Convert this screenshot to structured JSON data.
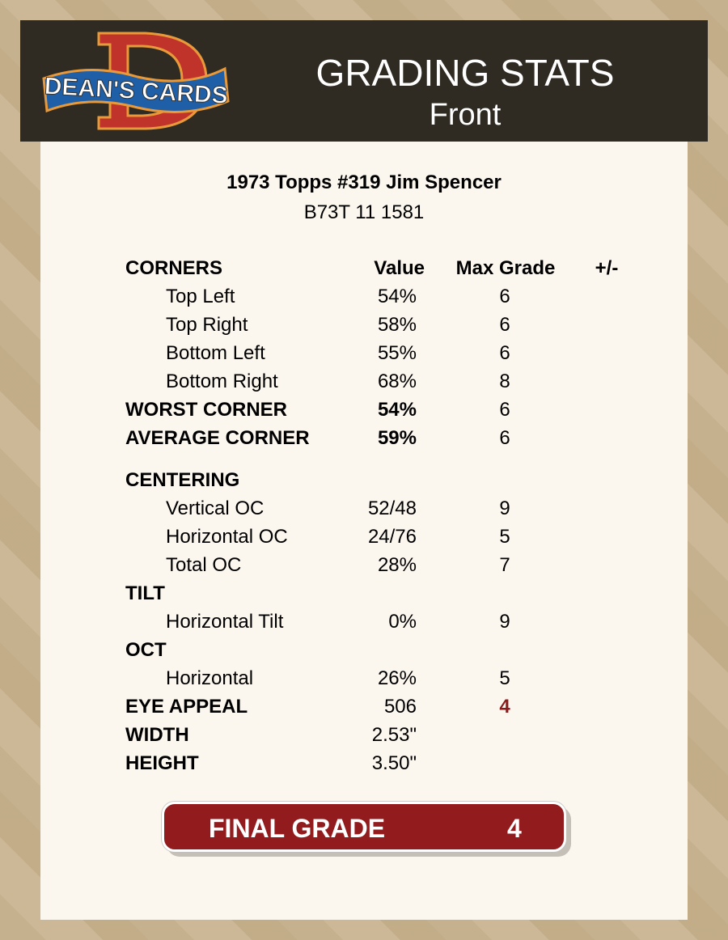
{
  "header": {
    "logo_text": "DEAN'S CARDS",
    "title": "GRADING STATS",
    "subtitle": "Front"
  },
  "card": {
    "name": "1973 Topps #319 Jim Spencer",
    "code": "B73T 11 1581"
  },
  "columns": {
    "value": "Value",
    "max_grade": "Max Grade",
    "plus_minus": "+/-"
  },
  "rows": [
    {
      "label": "CORNERS",
      "bold": true,
      "header": true
    },
    {
      "label": "Top Left",
      "indent": true,
      "value": "54%",
      "max": "6"
    },
    {
      "label": "Top Right",
      "indent": true,
      "value": "58%",
      "max": "6"
    },
    {
      "label": "Bottom Left",
      "indent": true,
      "value": "55%",
      "max": "6"
    },
    {
      "label": "Bottom Right",
      "indent": true,
      "value": "68%",
      "max": "8"
    },
    {
      "label": "WORST CORNER",
      "bold": true,
      "value": "54%",
      "valbold": true,
      "max": "6"
    },
    {
      "label": "AVERAGE CORNER",
      "bold": true,
      "value": "59%",
      "valbold": true,
      "max": "6"
    },
    {
      "label": "CENTERING",
      "bold": true
    },
    {
      "label": "Vertical OC",
      "indent": true,
      "value": "52/48",
      "max": "9"
    },
    {
      "label": "Horizontal OC",
      "indent": true,
      "value": "24/76",
      "max": "5"
    },
    {
      "label": "Total OC",
      "indent": true,
      "value": "28%",
      "max": "7"
    },
    {
      "label": "TILT",
      "bold": true
    },
    {
      "label": "Horizontal Tilt",
      "indent": true,
      "value": "0%",
      "max": "9"
    },
    {
      "label": "OCT",
      "bold": true
    },
    {
      "label": "Horizontal",
      "indent": true,
      "value": "26%",
      "max": "5"
    },
    {
      "label": "EYE APPEAL",
      "bold": true,
      "value": "506",
      "max": "4",
      "maxred": true
    },
    {
      "label": "WIDTH",
      "bold": true,
      "value": "2.53\""
    },
    {
      "label": "HEIGHT",
      "bold": true,
      "value": "3.50\""
    }
  ],
  "final": {
    "label": "FINAL GRADE",
    "value": "4"
  },
  "colors": {
    "header_bg": "#2f2a22",
    "panel_bg": "#fcf7ee",
    "accent_red": "#921b1d"
  }
}
